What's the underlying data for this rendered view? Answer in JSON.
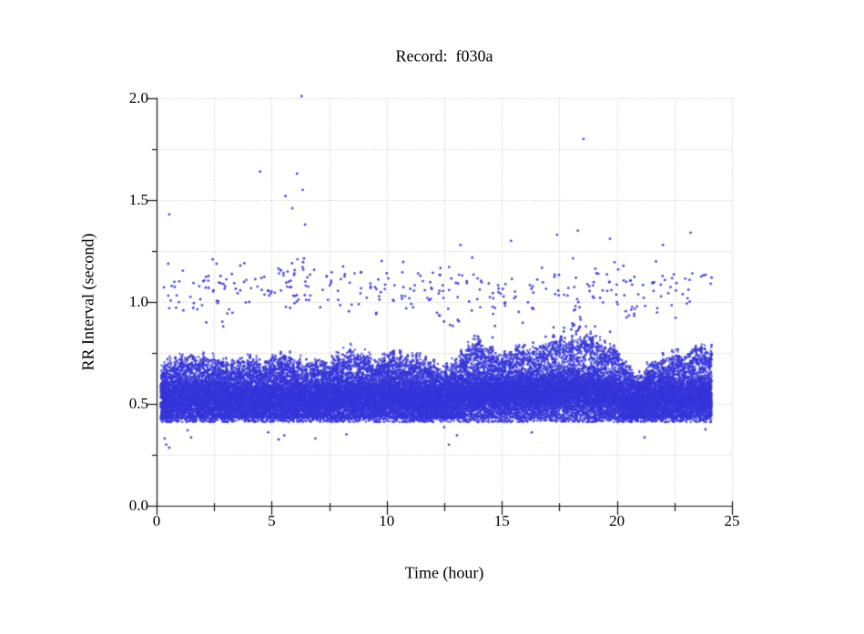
{
  "chart_data": {
    "type": "scatter",
    "title": "Record:  f030a",
    "xlabel": "Time (hour)",
    "ylabel": "RR Interval (second)",
    "xlim": [
      0,
      25
    ],
    "ylim": [
      0.0,
      2.0
    ],
    "x_major_ticks": [
      0,
      5,
      10,
      15,
      20,
      25
    ],
    "x_tick_labels": [
      "0",
      "5",
      "10",
      "15",
      "20",
      "25"
    ],
    "x_minor_ticks": [
      2.5,
      7.5,
      12.5,
      17.5,
      22.5
    ],
    "y_major_ticks": [
      0,
      0.5,
      1.0,
      1.5,
      2.0
    ],
    "y_tick_labels": [
      "0.0",
      "0.5",
      "1.0",
      "1.5",
      "2.0"
    ],
    "y_minor_ticks": [
      0.25,
      0.75,
      1.25,
      1.75
    ],
    "grid": {
      "show": true,
      "style": "dotted",
      "color": "#b9b9b9",
      "x_step": 2.5,
      "y_step": 0.25
    },
    "axis_color": "#151515",
    "point_color": "#3434da",
    "legend": null,
    "series": {
      "name": "RR intervals",
      "time_range_hours": [
        0.18,
        24.12
      ],
      "dense_band": {
        "n_points": 36000,
        "seed": 1234567,
        "bottom": 0.422,
        "envelope_knot_step_hours": 0.5,
        "top_envelope": [
          0.62,
          0.68,
          0.7,
          0.72,
          0.71,
          0.7,
          0.68,
          0.67,
          0.7,
          0.68,
          0.7,
          0.72,
          0.7,
          0.68,
          0.7,
          0.68,
          0.72,
          0.76,
          0.72,
          0.7,
          0.7,
          0.72,
          0.7,
          0.7,
          0.68,
          0.64,
          0.7,
          0.76,
          0.78,
          0.74,
          0.72,
          0.74,
          0.74,
          0.76,
          0.78,
          0.8,
          0.78,
          0.82,
          0.8,
          0.76,
          0.74,
          0.64,
          0.62,
          0.68,
          0.7,
          0.72,
          0.72,
          0.76,
          0.74
        ],
        "center_envelope": [
          0.52,
          0.52,
          0.53,
          0.53,
          0.53,
          0.53,
          0.52,
          0.52,
          0.52,
          0.52,
          0.52,
          0.52,
          0.52,
          0.52,
          0.52,
          0.52,
          0.53,
          0.53,
          0.53,
          0.53,
          0.53,
          0.53,
          0.53,
          0.52,
          0.52,
          0.51,
          0.53,
          0.55,
          0.55,
          0.55,
          0.55,
          0.55,
          0.55,
          0.55,
          0.56,
          0.56,
          0.56,
          0.56,
          0.56,
          0.55,
          0.54,
          0.5,
          0.5,
          0.52,
          0.53,
          0.53,
          0.53,
          0.54,
          0.53
        ],
        "core_spread": 0.11,
        "spike_columns": 150
      },
      "mid_cloud": {
        "n_points": 320,
        "y_mean": 1.06,
        "y_spread": 0.24,
        "y_min": 0.88,
        "y_max": 1.33,
        "extra_clusters": [
          {
            "t0": 5.0,
            "t1": 6.6,
            "n": 18,
            "y0": 0.98,
            "y1": 1.22
          },
          {
            "t0": 18.05,
            "t1": 18.5,
            "n": 14,
            "y0": 0.84,
            "y1": 1.03
          },
          {
            "t0": 20.35,
            "t1": 20.9,
            "n": 9,
            "y0": 0.9,
            "y1": 0.98
          },
          {
            "t0": 13.4,
            "t1": 19.8,
            "n": 16,
            "y0": 0.82,
            "y1": 0.9
          }
        ]
      },
      "high_outliers": [
        [
          0.55,
          1.43
        ],
        [
          4.5,
          1.64
        ],
        [
          5.6,
          1.52
        ],
        [
          5.9,
          1.46
        ],
        [
          6.1,
          1.63
        ],
        [
          6.3,
          2.01
        ],
        [
          6.35,
          1.55
        ],
        [
          6.45,
          1.38
        ],
        [
          18.55,
          1.8
        ],
        [
          18.3,
          1.35
        ],
        [
          19.7,
          1.31
        ],
        [
          17.4,
          1.33
        ],
        [
          22.0,
          1.28
        ],
        [
          23.2,
          1.34
        ],
        [
          13.2,
          1.28
        ],
        [
          15.4,
          1.3
        ]
      ],
      "low_outliers": [
        [
          0.35,
          0.33
        ],
        [
          0.42,
          0.3
        ],
        [
          0.55,
          0.285
        ],
        [
          1.35,
          0.37
        ],
        [
          1.5,
          0.335
        ],
        [
          4.85,
          0.36
        ],
        [
          5.3,
          0.325
        ],
        [
          5.55,
          0.345
        ],
        [
          6.9,
          0.33
        ],
        [
          8.25,
          0.35
        ],
        [
          12.5,
          0.385
        ],
        [
          12.7,
          0.3
        ],
        [
          13.05,
          0.345
        ],
        [
          16.3,
          0.36
        ],
        [
          21.2,
          0.335
        ],
        [
          23.85,
          0.375
        ]
      ]
    }
  }
}
